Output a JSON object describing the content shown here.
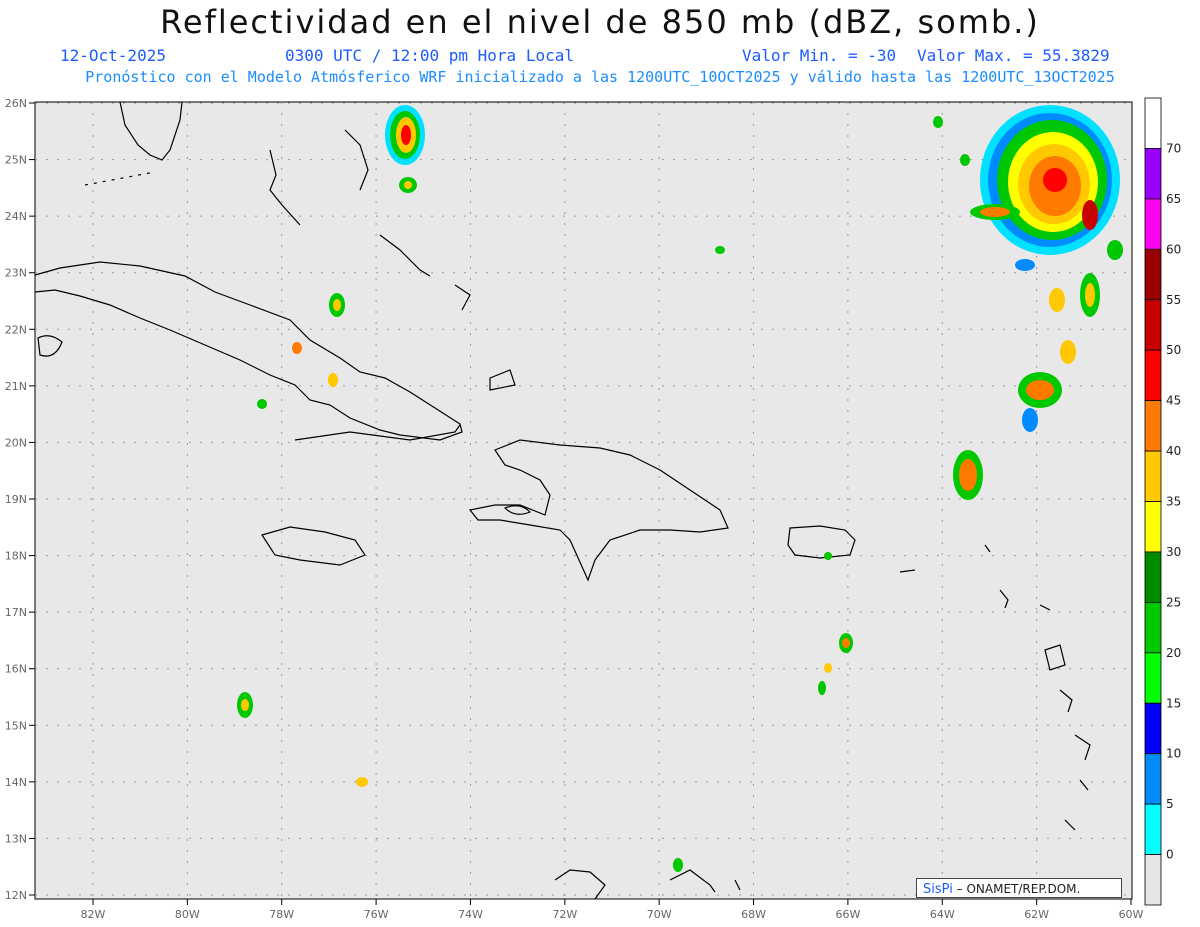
{
  "header": {
    "title": "Reflectividad en el nivel de 850 mb (dBZ, somb.)",
    "date": "12-Oct-2025",
    "time": "0300 UTC / 12:00 pm Hora Local",
    "min": "Valor Min. = -30",
    "max": "Valor Max. = 55.3829",
    "subtitle": "Pronóstico con el Modelo Atmósferico WRF inicializado a las 1200UTC_10OCT2025 y válido hasta las  1200UTC_13OCT2025"
  },
  "axes": {
    "lon_labels": [
      "82W",
      "80W",
      "78W",
      "76W",
      "74W",
      "72W",
      "70W",
      "68W",
      "66W",
      "64W",
      "62W",
      "60W"
    ],
    "lat_labels": [
      "26N",
      "25N",
      "24N",
      "23N",
      "22N",
      "21N",
      "20N",
      "19N",
      "18N",
      "17N",
      "16N",
      "15N",
      "14N",
      "13N",
      "12N"
    ]
  },
  "colorbar": {
    "labels": [
      "70",
      "65",
      "60",
      "55",
      "50",
      "45",
      "40",
      "35",
      "30",
      "25",
      "20",
      "15",
      "10",
      "5",
      "0"
    ],
    "colors": [
      "#ffffff",
      "#9a00ff",
      "#ff00f0",
      "#9a0000",
      "#c80000",
      "#ff0000",
      "#ff7a00",
      "#ffc800",
      "#ffff00",
      "#008c00",
      "#00c800",
      "#00ff00",
      "#0000ff",
      "#008cff",
      "#00ffff",
      "#e6e6e6"
    ]
  },
  "credit": {
    "brand": "SisPi",
    "text": "– ONAMET/REP.DOM."
  }
}
